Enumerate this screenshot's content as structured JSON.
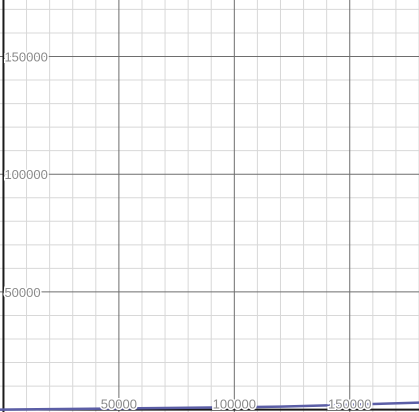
{
  "chart_data": {
    "type": "line",
    "title": "",
    "xlabel": "",
    "ylabel": "",
    "xlim": [
      -1500,
      180000
    ],
    "ylim": [
      -1000,
      174000
    ],
    "x_ticks": [
      50000,
      100000,
      150000
    ],
    "y_ticks": [
      50000,
      100000,
      150000
    ],
    "x_tick_labels": [
      "50000",
      "100000",
      "150000"
    ],
    "y_tick_labels": [
      "50000",
      "100000",
      "150000"
    ],
    "minor_grid_step": 10000,
    "major_grid_step": 50000,
    "grid": true,
    "series": [
      {
        "color": "#5b5ea6",
        "x": [
          -1500,
          20000,
          50000,
          80000,
          100000,
          120000,
          140000,
          160000,
          180000
        ],
        "y": [
          0,
          200,
          500,
          800,
          1000,
          1300,
          1800,
          2400,
          3000
        ]
      }
    ]
  },
  "colors": {
    "axis": "#1a1a1a",
    "major_grid": "#6e6e6e",
    "minor_grid": "#d8d8d8",
    "tick_label": "#8a8a8a",
    "curve": "#5b5ea6",
    "background": "#ffffff"
  }
}
